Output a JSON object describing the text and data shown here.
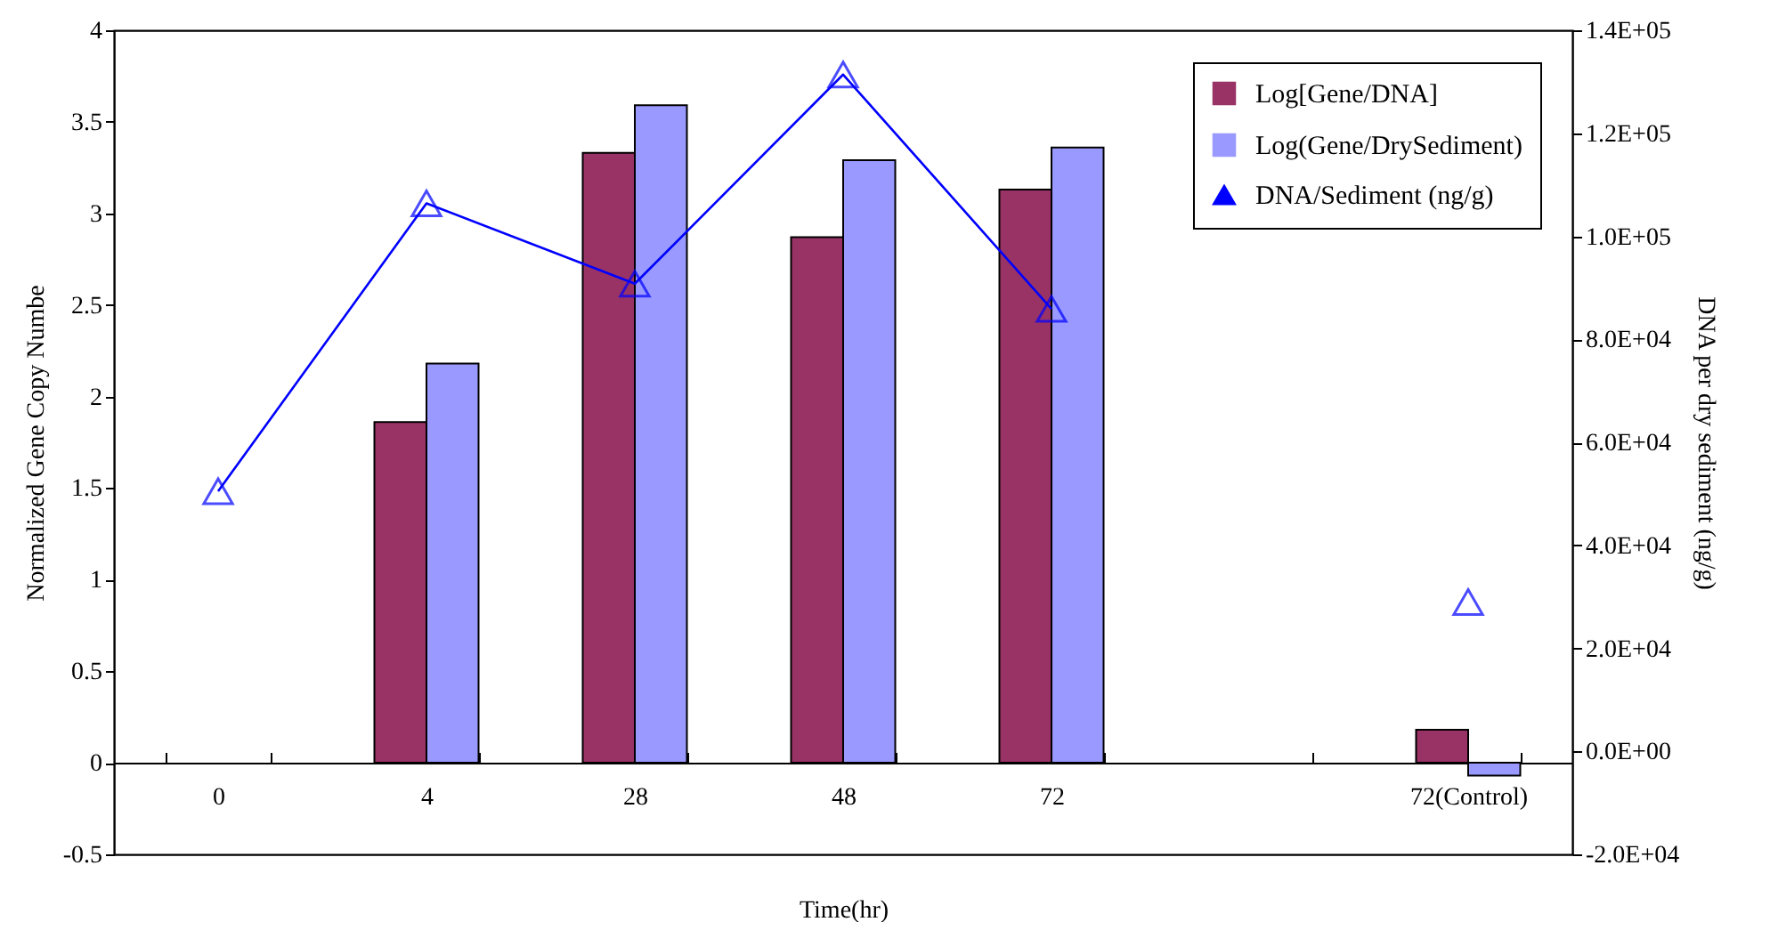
{
  "chart_data": {
    "type": "bar",
    "xlabel": "Time(hr)",
    "ylabel": "Normalized Gene Copy Numbe",
    "y2label": "DNA per dry sediment (ng/g)",
    "categories": [
      "0",
      "4",
      "28",
      "48",
      "72",
      null,
      "72(Control)"
    ],
    "series": [
      {
        "name": "Log[Gene/DNA]",
        "color": "#993366",
        "values": [
          null,
          1.86,
          3.33,
          2.87,
          3.13,
          null,
          0.18
        ]
      },
      {
        "name": "Log(Gene/DrySediment)",
        "color": "#9999ff",
        "values": [
          null,
          2.18,
          3.59,
          3.29,
          3.36,
          null,
          -0.07
        ]
      },
      {
        "name": "DNA/Sediment (ng/g)",
        "type": "line",
        "axis": "y2",
        "color": "#0000ff",
        "marker": "triangle",
        "line_style": "solid",
        "values": [
          50500,
          106400,
          90800,
          131400,
          85900,
          null,
          null
        ]
      },
      {
        "type": "scatter",
        "axis": "y2",
        "color": "#0000ff",
        "marker": "triangle",
        "values": [
          null,
          null,
          null,
          null,
          null,
          null,
          29000
        ]
      }
    ],
    "ylim": [
      -0.5,
      4
    ],
    "yticks": [
      -0.5,
      0,
      0.5,
      1,
      1.5,
      2,
      2.5,
      3,
      3.5,
      4
    ],
    "y2lim": [
      -20000,
      140000
    ],
    "y2ticks": [
      {
        "value": -20000,
        "label": "-2.0E+04"
      },
      {
        "value": 0,
        "label": "0.0E+00"
      },
      {
        "value": 20000,
        "label": "2.0E+04"
      },
      {
        "value": 40000,
        "label": "4.0E+04"
      },
      {
        "value": 60000,
        "label": "6.0E+04"
      },
      {
        "value": 80000,
        "label": "8.0E+04"
      },
      {
        "value": 100000,
        "label": "1.0E+05"
      },
      {
        "value": 120000,
        "label": "1.2E+05"
      },
      {
        "value": 140000,
        "label": "1.4E+05"
      }
    ],
    "legend": "top right",
    "grid": false
  }
}
